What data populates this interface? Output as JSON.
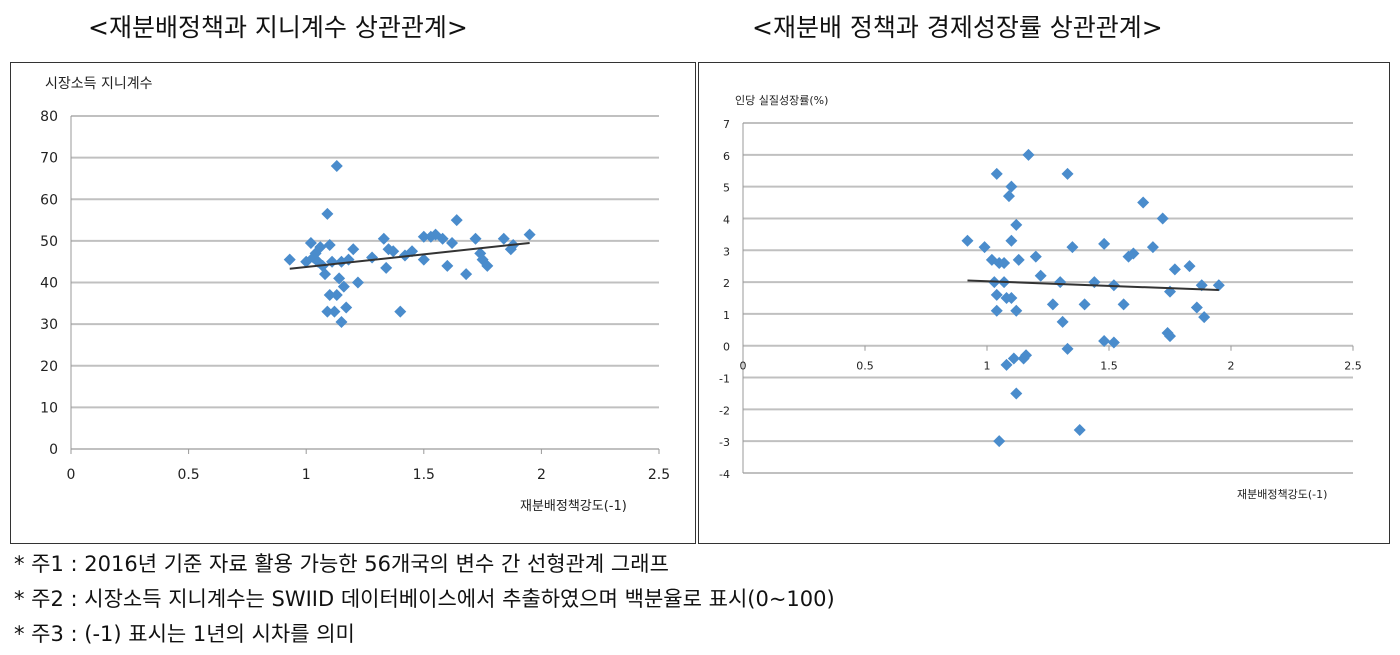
{
  "titles": [
    "<재분배정책과 지니계수 상관관계>",
    "<재분배 정책과 경제성장률 상관관계>"
  ],
  "notes": [
    "* 주1 : 2016년 기준 자료 활용 가능한 56개국의 변수 간 선형관계 그래프",
    "* 주2 : 시장소득 지니계수는 SWIID 데이터베이스에서 추출하였으며 백분율로 표시(0~100)",
    "* 주3 : (-1) 표시는 1년의 시차를 의미"
  ],
  "colors": {
    "points": "#4a8ccc",
    "trend": "#333333",
    "grid": "#c0c0c0"
  },
  "chart_data": [
    {
      "type": "scatter",
      "ylabel": "시장소득 지니계수",
      "xlabel": "재분배정책강도(-1)",
      "xlim": [
        0,
        2.5
      ],
      "ylim": [
        0,
        80
      ],
      "xticks": [
        "0",
        "0.5",
        "1",
        "1.5",
        "2",
        "2.5"
      ],
      "yticks": [
        "0",
        "10",
        "20",
        "30",
        "40",
        "50",
        "60",
        "70",
        "80"
      ],
      "grid": "horizontal",
      "trendline": [
        [
          0.93,
          43.3
        ],
        [
          1.95,
          49.5
        ]
      ],
      "points": [
        [
          0.93,
          45.5
        ],
        [
          1.0,
          45
        ],
        [
          1.02,
          49.5
        ],
        [
          1.03,
          46
        ],
        [
          1.04,
          47
        ],
        [
          1.05,
          45
        ],
        [
          1.06,
          48.5
        ],
        [
          1.07,
          44
        ],
        [
          1.08,
          42
        ],
        [
          1.09,
          56.5
        ],
        [
          1.09,
          33
        ],
        [
          1.1,
          37
        ],
        [
          1.1,
          49
        ],
        [
          1.11,
          45
        ],
        [
          1.12,
          33
        ],
        [
          1.13,
          37
        ],
        [
          1.13,
          68
        ],
        [
          1.14,
          41
        ],
        [
          1.15,
          45
        ],
        [
          1.15,
          30.5
        ],
        [
          1.16,
          39
        ],
        [
          1.17,
          34
        ],
        [
          1.18,
          45.5
        ],
        [
          1.2,
          48
        ],
        [
          1.22,
          40
        ],
        [
          1.28,
          46
        ],
        [
          1.33,
          50.5
        ],
        [
          1.34,
          43.5
        ],
        [
          1.35,
          48
        ],
        [
          1.37,
          47.5
        ],
        [
          1.4,
          33
        ],
        [
          1.42,
          46.5
        ],
        [
          1.45,
          47.5
        ],
        [
          1.5,
          45.5
        ],
        [
          1.5,
          51
        ],
        [
          1.53,
          51
        ],
        [
          1.55,
          51.5
        ],
        [
          1.58,
          50.5
        ],
        [
          1.6,
          44
        ],
        [
          1.62,
          49.5
        ],
        [
          1.64,
          55
        ],
        [
          1.68,
          42
        ],
        [
          1.72,
          50.5
        ],
        [
          1.74,
          47
        ],
        [
          1.75,
          45.5
        ],
        [
          1.77,
          44
        ],
        [
          1.84,
          50.5
        ],
        [
          1.87,
          48
        ],
        [
          1.88,
          49
        ],
        [
          1.95,
          51.5
        ]
      ]
    },
    {
      "type": "scatter",
      "ylabel": "인당 실질성장률(%)",
      "xlabel": "재분배정책강도(-1)",
      "xlim": [
        0,
        2.5
      ],
      "ylim": [
        -4,
        7
      ],
      "xticks": [
        "0",
        "0.5",
        "1",
        "1.5",
        "2",
        "2.5"
      ],
      "yticks": [
        "-4",
        "-3",
        "-2",
        "-1",
        "0",
        "1",
        "2",
        "3",
        "4",
        "5",
        "6",
        "7"
      ],
      "grid": "horizontal",
      "trendline": [
        [
          0.92,
          2.05
        ],
        [
          1.95,
          1.75
        ]
      ],
      "points": [
        [
          0.92,
          3.3
        ],
        [
          0.99,
          3.1
        ],
        [
          1.02,
          2.7
        ],
        [
          1.03,
          2.0
        ],
        [
          1.04,
          5.4
        ],
        [
          1.04,
          1.6
        ],
        [
          1.04,
          1.1
        ],
        [
          1.05,
          2.6
        ],
        [
          1.05,
          -3.0
        ],
        [
          1.07,
          2.6
        ],
        [
          1.07,
          2.0
        ],
        [
          1.08,
          1.5
        ],
        [
          1.08,
          -0.6
        ],
        [
          1.09,
          4.7
        ],
        [
          1.1,
          5.0
        ],
        [
          1.1,
          3.3
        ],
        [
          1.1,
          1.5
        ],
        [
          1.11,
          -0.4
        ],
        [
          1.12,
          3.8
        ],
        [
          1.12,
          1.1
        ],
        [
          1.12,
          -1.5
        ],
        [
          1.13,
          2.7
        ],
        [
          1.15,
          -0.4
        ],
        [
          1.16,
          -0.3
        ],
        [
          1.17,
          6.0
        ],
        [
          1.2,
          2.8
        ],
        [
          1.22,
          2.2
        ],
        [
          1.27,
          1.3
        ],
        [
          1.3,
          2.0
        ],
        [
          1.31,
          0.75
        ],
        [
          1.33,
          5.4
        ],
        [
          1.33,
          -0.1
        ],
        [
          1.35,
          3.1
        ],
        [
          1.4,
          1.3
        ],
        [
          1.38,
          -2.65
        ],
        [
          1.44,
          2.0
        ],
        [
          1.48,
          3.2
        ],
        [
          1.48,
          0.15
        ],
        [
          1.52,
          1.9
        ],
        [
          1.52,
          0.1
        ],
        [
          1.56,
          1.3
        ],
        [
          1.58,
          2.8
        ],
        [
          1.6,
          2.9
        ],
        [
          1.64,
          4.5
        ],
        [
          1.68,
          3.1
        ],
        [
          1.72,
          4.0
        ],
        [
          1.74,
          0.4
        ],
        [
          1.75,
          0.3
        ],
        [
          1.75,
          1.7
        ],
        [
          1.77,
          2.4
        ],
        [
          1.83,
          2.5
        ],
        [
          1.86,
          1.2
        ],
        [
          1.88,
          1.9
        ],
        [
          1.89,
          0.9
        ],
        [
          1.95,
          1.9
        ]
      ]
    }
  ]
}
